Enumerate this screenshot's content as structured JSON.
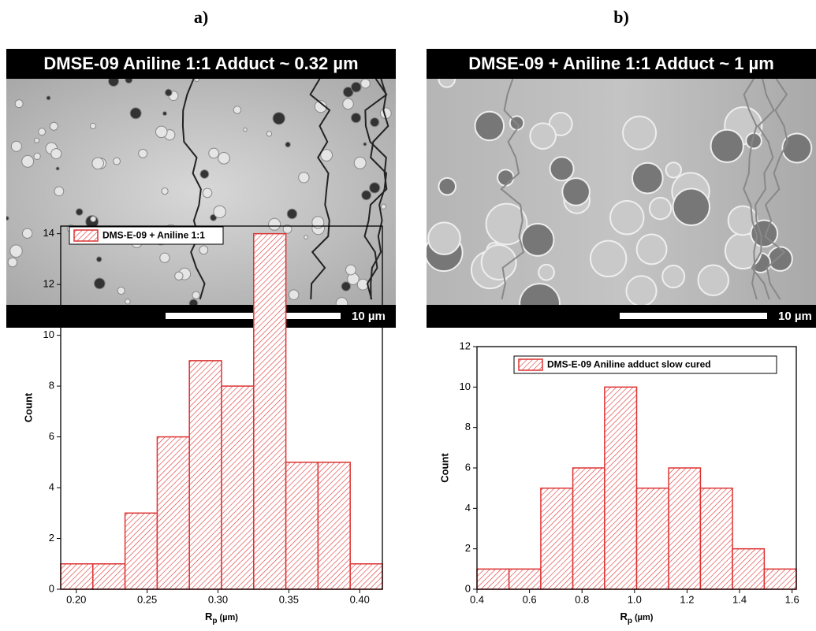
{
  "chart_data": [
    {
      "type": "histogram",
      "panel_label": "a)",
      "image_caption": "DMSE-09 Aniline 1:1 Adduct ~ 0.32 µm",
      "scale_bar_label": "10 µm",
      "legend": "DMS-E-09 + Aniline 1:1",
      "color": "#d33",
      "bins": [
        0.189,
        0.2117,
        0.2344,
        0.2571,
        0.2798,
        0.3025,
        0.3252,
        0.3479,
        0.3706,
        0.3933,
        0.416
      ],
      "counts": [
        1,
        1,
        3,
        6,
        9,
        8,
        14,
        5,
        5,
        1
      ],
      "xlim": [
        0.189,
        0.416
      ],
      "xticks": [
        {
          "value": 0.2,
          "label": "0.20"
        },
        0.25,
        {
          "value": 0.3,
          "label": "0.30"
        },
        0.35,
        {
          "value": 0.4,
          "label": "0.40"
        }
      ],
      "ylim": [
        0,
        14.3
      ],
      "yticks": [
        0,
        2,
        4,
        6,
        8,
        10,
        12,
        14
      ],
      "y_label": "Count",
      "x_label": "R",
      "x_label_sub": "p",
      "x_label_unit": "(µm)"
    },
    {
      "type": "histogram",
      "panel_label": "b)",
      "image_caption": "DMSE-09 + Aniline 1:1 Adduct ~ 1 µm",
      "scale_bar_label": "10 µm",
      "legend": "DMS-E-09 Aniline adduct slow cured",
      "color": "#d33",
      "bins": [
        0.4,
        0.522,
        0.643,
        0.765,
        0.886,
        1.008,
        1.13,
        1.251,
        1.373,
        1.494,
        1.616
      ],
      "counts": [
        1,
        1,
        5,
        6,
        10,
        5,
        6,
        5,
        2,
        1
      ],
      "xlim": [
        0.4,
        1.616
      ],
      "xticks": [
        0.4,
        0.6,
        0.8,
        {
          "value": 1.0,
          "label": "1.0"
        },
        1.2,
        1.4,
        1.6
      ],
      "ylim": [
        0,
        12
      ],
      "yticks": [
        0,
        2,
        4,
        6,
        8,
        10,
        12
      ],
      "y_label": "Count",
      "x_label": "R",
      "x_label_sub": "p",
      "x_label_unit": "(µm)"
    }
  ]
}
